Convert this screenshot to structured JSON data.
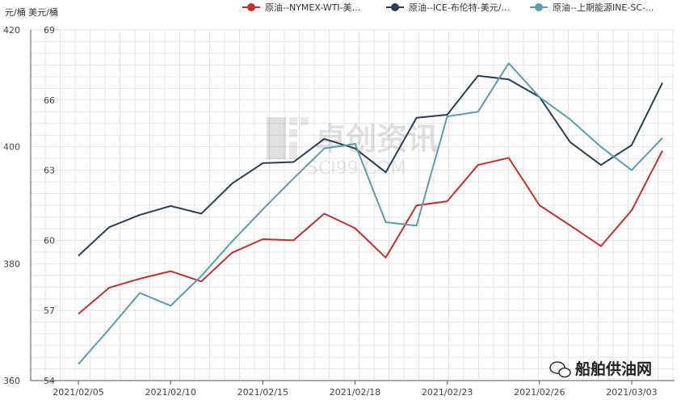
{
  "chart_data": {
    "type": "line",
    "unit_label": "元/桶 美元/桶",
    "x": [
      "2021/02/05",
      "2021/02/08",
      "2021/02/09",
      "2021/02/10",
      "2021/02/11",
      "2021/02/12",
      "2021/02/15",
      "2021/02/16",
      "2021/02/17",
      "2021/02/18",
      "2021/02/19",
      "2021/02/22",
      "2021/02/23",
      "2021/02/24",
      "2021/02/25",
      "2021/02/26",
      "2021/03/01",
      "2021/03/02",
      "2021/03/03",
      "2021/03/04"
    ],
    "x_tick_labels": [
      "2021/02/05",
      "2021/02/10",
      "2021/02/15",
      "2021/02/18",
      "2021/02/23",
      "2021/02/26",
      "2021/03/03"
    ],
    "left_axis": {
      "ticks": [
        360,
        380,
        400,
        420
      ],
      "ylim": [
        360,
        420
      ]
    },
    "right_axis": {
      "ticks": [
        54,
        57,
        60,
        63,
        66,
        69
      ],
      "ylim": [
        54,
        69
      ]
    },
    "series": [
      {
        "name": "原油--NYMEX-WTI-美...",
        "axis": "right",
        "color": "#c0302c",
        "values": [
          56.85,
          57.97,
          58.36,
          58.68,
          58.24,
          59.47,
          60.05,
          60.0,
          61.14,
          60.52,
          59.26,
          61.49,
          61.67,
          63.22,
          63.53,
          61.5,
          60.64,
          59.75,
          61.28,
          63.83
        ]
      },
      {
        "name": "原油--ICE-布伦特-美元/...",
        "axis": "right",
        "color": "#2c3e50",
        "values": [
          59.34,
          60.56,
          61.09,
          61.47,
          61.14,
          62.43,
          63.3,
          63.35,
          64.34,
          63.93,
          62.91,
          65.24,
          65.37,
          67.04,
          66.88,
          66.13,
          64.2,
          63.22,
          64.07,
          66.74
        ]
      },
      {
        "name": "原油--上期能源INE-SC-...",
        "axis": "left",
        "color": "#5b9ea6",
        "values": [
          362.8,
          368.8,
          375.0,
          372.8,
          377.9,
          383.8,
          389.3,
          394.6,
          399.7,
          400.5,
          387.1,
          386.5,
          405.2,
          406.0,
          414.3,
          408.5,
          404.7,
          400.0,
          396.0,
          401.5
        ]
      }
    ],
    "grid": true,
    "legend_position": "top-right"
  },
  "watermark": {
    "text": "卓创资讯",
    "subtext": "SCI99.COM"
  },
  "badge": {
    "text": "船舶供油网"
  }
}
